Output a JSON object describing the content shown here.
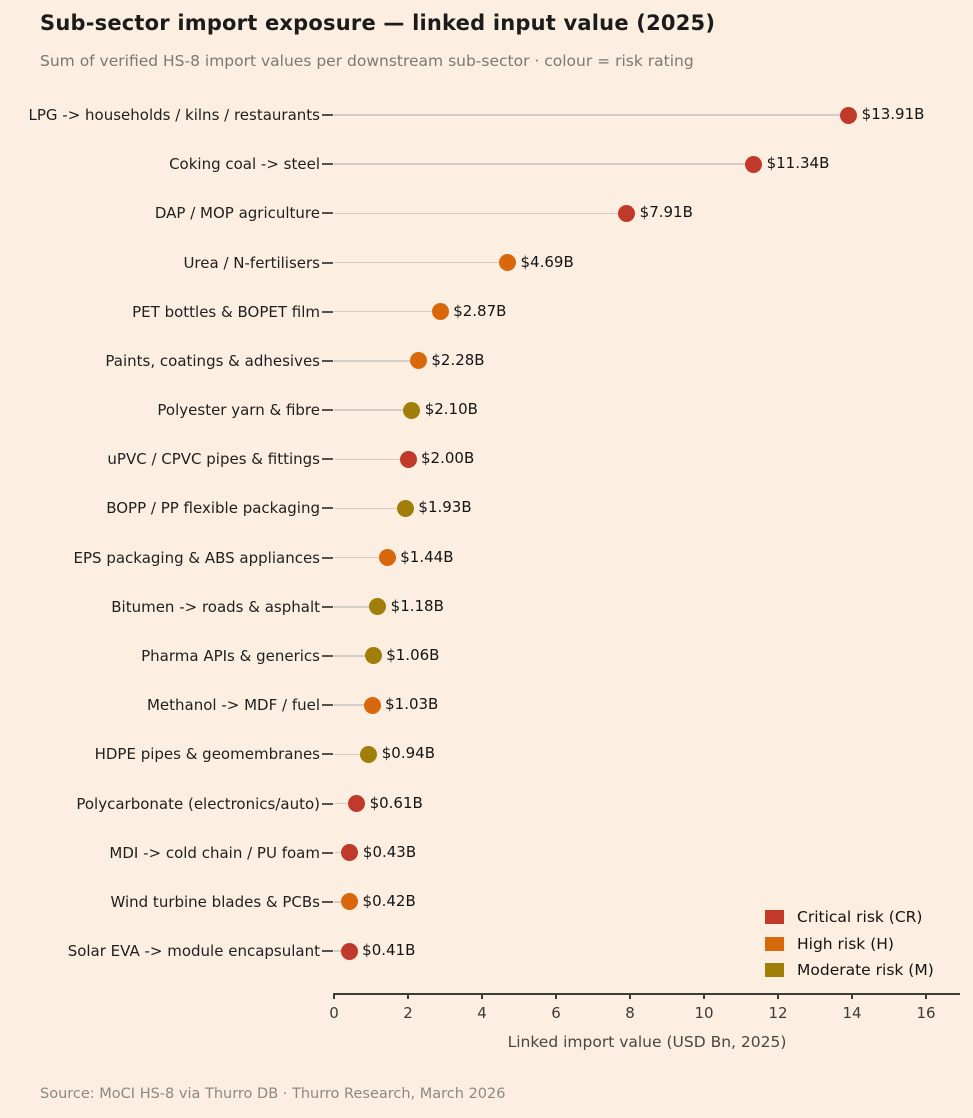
{
  "header": {
    "title": "Sub-sector import exposure — linked input value (2025)",
    "subtitle": "Sum of verified HS-8 import values per downstream sub-sector · colour = risk rating"
  },
  "footer": {
    "source": "Source: MoCI HS-8 via Thurro DB · Thurro Research, March 2026"
  },
  "colors": {
    "background": "#fcefe1",
    "critical": "#c0392b",
    "high": "#d9680c",
    "moderate": "#a17d0a",
    "stem": "#d2ccc4",
    "axis": "#3f3b36"
  },
  "chart_data": {
    "type": "bar",
    "variant": "horizontal-lollipop",
    "title": "Sub-sector import exposure — linked input value (2025)",
    "subtitle": "Sum of verified HS-8 import values per downstream sub-sector · colour = risk rating",
    "xlabel": "Linked import value (USD Bn, 2025)",
    "ylabel": "",
    "xlim": [
      0,
      16.9
    ],
    "xticks": [
      0,
      2,
      4,
      6,
      8,
      10,
      12,
      14,
      16
    ],
    "grid": false,
    "legend_position": "lower right",
    "legend": [
      {
        "label": "Critical risk (CR)",
        "risk": "CR",
        "color_key": "critical"
      },
      {
        "label": "High risk (H)",
        "risk": "H",
        "color_key": "high"
      },
      {
        "label": "Moderate risk (M)",
        "risk": "M",
        "color_key": "moderate"
      }
    ],
    "rows": [
      {
        "category": "LPG -> households / kilns / restaurants",
        "value": 13.91,
        "value_label": "$13.91B",
        "risk": "CR"
      },
      {
        "category": "Coking coal -> steel",
        "value": 11.34,
        "value_label": "$11.34B",
        "risk": "CR"
      },
      {
        "category": "DAP / MOP agriculture",
        "value": 7.91,
        "value_label": "$7.91B",
        "risk": "CR"
      },
      {
        "category": "Urea / N-fertilisers",
        "value": 4.69,
        "value_label": "$4.69B",
        "risk": "H"
      },
      {
        "category": "PET bottles & BOPET film",
        "value": 2.87,
        "value_label": "$2.87B",
        "risk": "H"
      },
      {
        "category": "Paints, coatings & adhesives",
        "value": 2.28,
        "value_label": "$2.28B",
        "risk": "H"
      },
      {
        "category": "Polyester yarn & fibre",
        "value": 2.1,
        "value_label": "$2.10B",
        "risk": "M"
      },
      {
        "category": "uPVC / CPVC pipes & fittings",
        "value": 2.0,
        "value_label": "$2.00B",
        "risk": "CR"
      },
      {
        "category": "BOPP / PP flexible packaging",
        "value": 1.93,
        "value_label": "$1.93B",
        "risk": "M"
      },
      {
        "category": "EPS packaging & ABS appliances",
        "value": 1.44,
        "value_label": "$1.44B",
        "risk": "H"
      },
      {
        "category": "Bitumen -> roads & asphalt",
        "value": 1.18,
        "value_label": "$1.18B",
        "risk": "M"
      },
      {
        "category": "Pharma APIs & generics",
        "value": 1.06,
        "value_label": "$1.06B",
        "risk": "M"
      },
      {
        "category": "Methanol -> MDF / fuel",
        "value": 1.03,
        "value_label": "$1.03B",
        "risk": "H"
      },
      {
        "category": "HDPE pipes & geomembranes",
        "value": 0.94,
        "value_label": "$0.94B",
        "risk": "M"
      },
      {
        "category": "Polycarbonate (electronics/auto)",
        "value": 0.61,
        "value_label": "$0.61B",
        "risk": "CR"
      },
      {
        "category": "MDI -> cold chain / PU foam",
        "value": 0.43,
        "value_label": "$0.43B",
        "risk": "CR"
      },
      {
        "category": "Wind turbine blades & PCBs",
        "value": 0.42,
        "value_label": "$0.42B",
        "risk": "H"
      },
      {
        "category": "Solar EVA -> module encapsulant",
        "value": 0.41,
        "value_label": "$0.41B",
        "risk": "CR"
      }
    ]
  }
}
